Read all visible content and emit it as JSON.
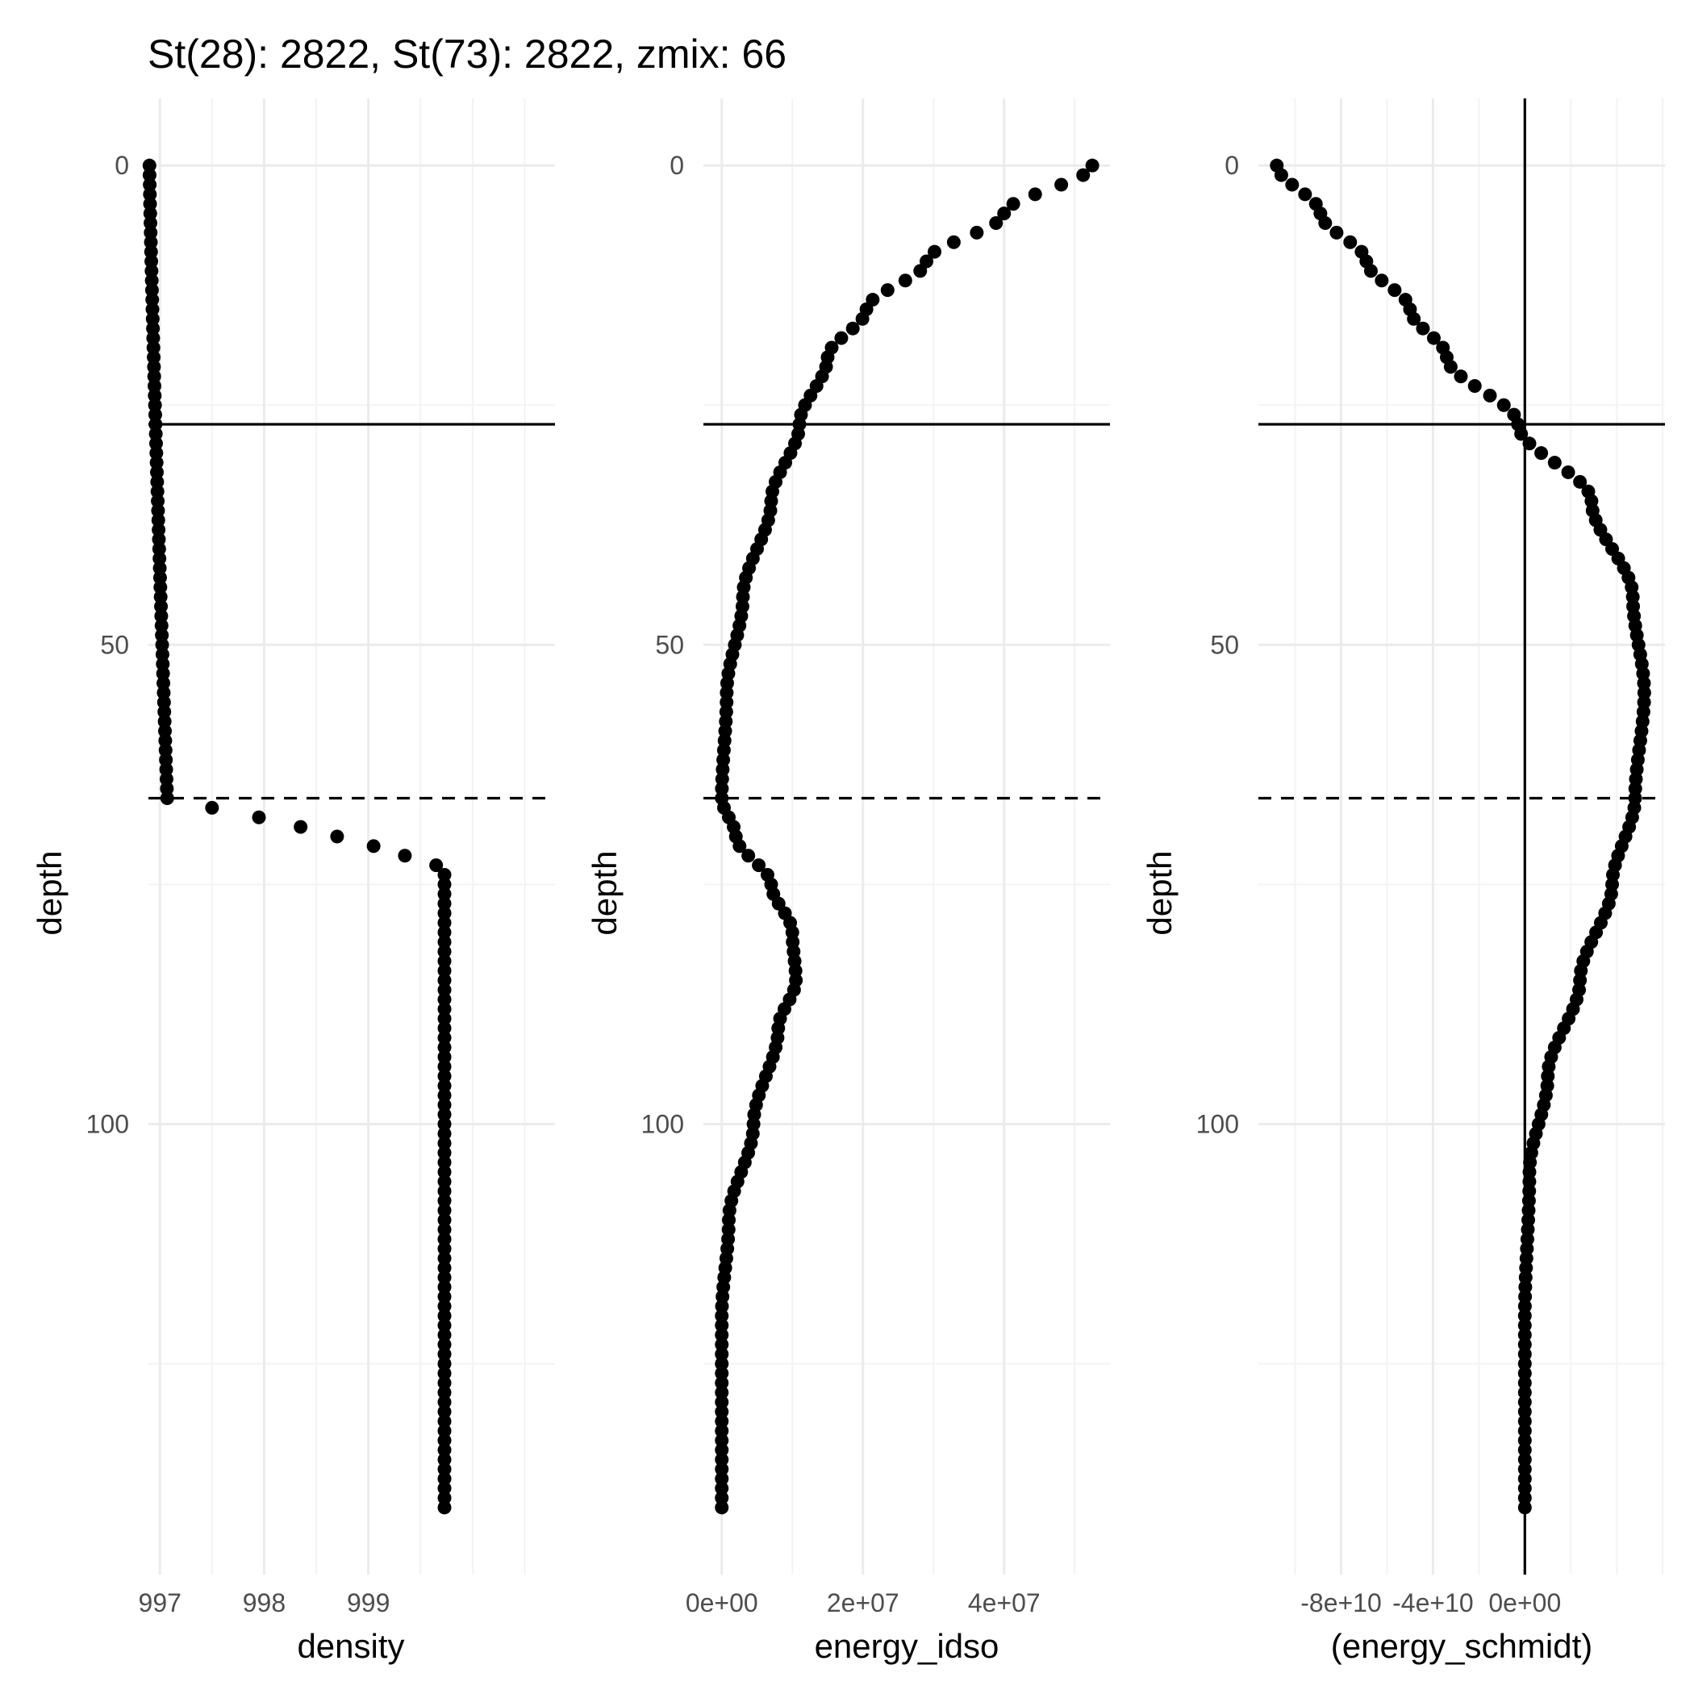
{
  "title": "St(28): 2822, St(73): 2822, zmix: 66",
  "colors": {
    "points": "#000000",
    "grid_major": "#ebebeb",
    "grid_minor": "#f3f3f3",
    "reference_lines": "#000000",
    "tick_text": "#4d4d4d"
  },
  "chart_data": [
    {
      "type": "scatter",
      "xlabel": "density",
      "ylabel": "depth",
      "x_ticks": [
        997,
        998,
        999
      ],
      "x_tick_labels": [
        "997",
        "998",
        "999"
      ],
      "xlim": [
        996.89,
        1000.79
      ],
      "y_ticks": [
        0,
        50,
        100
      ],
      "y_tick_labels": [
        "0",
        "50",
        "100"
      ],
      "ylim": [
        147,
        -7
      ],
      "y_reversed": true,
      "grid": true,
      "hlines": [
        {
          "y": 27,
          "style": "solid"
        },
        {
          "y": 66,
          "style": "dashed"
        }
      ],
      "vlines": [],
      "profile_type": "density",
      "params": {
        "start": 996.9,
        "end_mixed": 997.07,
        "step_points": [
          997.5,
          997.95,
          998.35,
          998.7,
          999.05,
          999.35,
          999.65
        ],
        "deep": 999.73
      }
    },
    {
      "type": "scatter",
      "xlabel": "energy_idso",
      "ylabel": "depth",
      "x_ticks": [
        0,
        20000000,
        40000000
      ],
      "x_tick_labels": [
        "0e+00",
        "2e+07",
        "4e+07"
      ],
      "xlim": [
        -2600000,
        55000000
      ],
      "y_ticks": [
        0,
        50,
        100
      ],
      "y_tick_labels": [
        "0",
        "50",
        "100"
      ],
      "ylim": [
        147,
        -7
      ],
      "y_reversed": true,
      "grid": true,
      "hlines": [
        {
          "y": 27,
          "style": "solid"
        },
        {
          "y": 66,
          "style": "dashed"
        }
      ],
      "vlines": [],
      "profile_type": "idso",
      "control_points": [
        [
          0,
          52500000
        ],
        [
          5,
          40000000
        ],
        [
          10,
          29000000
        ],
        [
          15,
          20500000
        ],
        [
          20,
          15000000
        ],
        [
          27,
          11000000
        ],
        [
          35,
          7000000
        ],
        [
          45,
          3000000
        ],
        [
          55,
          700000
        ],
        [
          66,
          0
        ],
        [
          70,
          2000000
        ],
        [
          75,
          7000000
        ],
        [
          80,
          10000000
        ],
        [
          85,
          10500000
        ],
        [
          90,
          8000000
        ],
        [
          100,
          4500000
        ],
        [
          110,
          1000000
        ],
        [
          120,
          0
        ],
        [
          140,
          0
        ]
      ]
    },
    {
      "type": "scatter",
      "xlabel": "(energy_schmidt)",
      "ylabel": "depth",
      "x_ticks": [
        -80000000000,
        -40000000000,
        0
      ],
      "x_tick_labels": [
        "-8e+10",
        "-4e+10",
        "0e+00"
      ],
      "xlim": [
        -116000000000,
        61000000000
      ],
      "y_ticks": [
        0,
        50,
        100
      ],
      "y_tick_labels": [
        "0",
        "50",
        "100"
      ],
      "ylim": [
        147,
        -7
      ],
      "y_reversed": true,
      "grid": true,
      "hlines": [
        {
          "y": 27,
          "style": "solid"
        },
        {
          "y": 66,
          "style": "dashed"
        }
      ],
      "vlines": [
        {
          "x": 0,
          "style": "solid"
        }
      ],
      "profile_type": "schmidt",
      "control_points": [
        [
          0,
          -108000000000
        ],
        [
          5,
          -89000000000
        ],
        [
          10,
          -69000000000
        ],
        [
          15,
          -50000000000
        ],
        [
          20,
          -34000000000
        ],
        [
          27,
          -3000000000
        ],
        [
          35,
          29000000000
        ],
        [
          45,
          47000000000
        ],
        [
          55,
          52000000000
        ],
        [
          66,
          48000000000
        ],
        [
          75,
          38000000000
        ],
        [
          85,
          24000000000
        ],
        [
          95,
          10000000000
        ],
        [
          105,
          2000000000
        ],
        [
          120,
          0
        ],
        [
          140,
          0
        ]
      ]
    }
  ]
}
